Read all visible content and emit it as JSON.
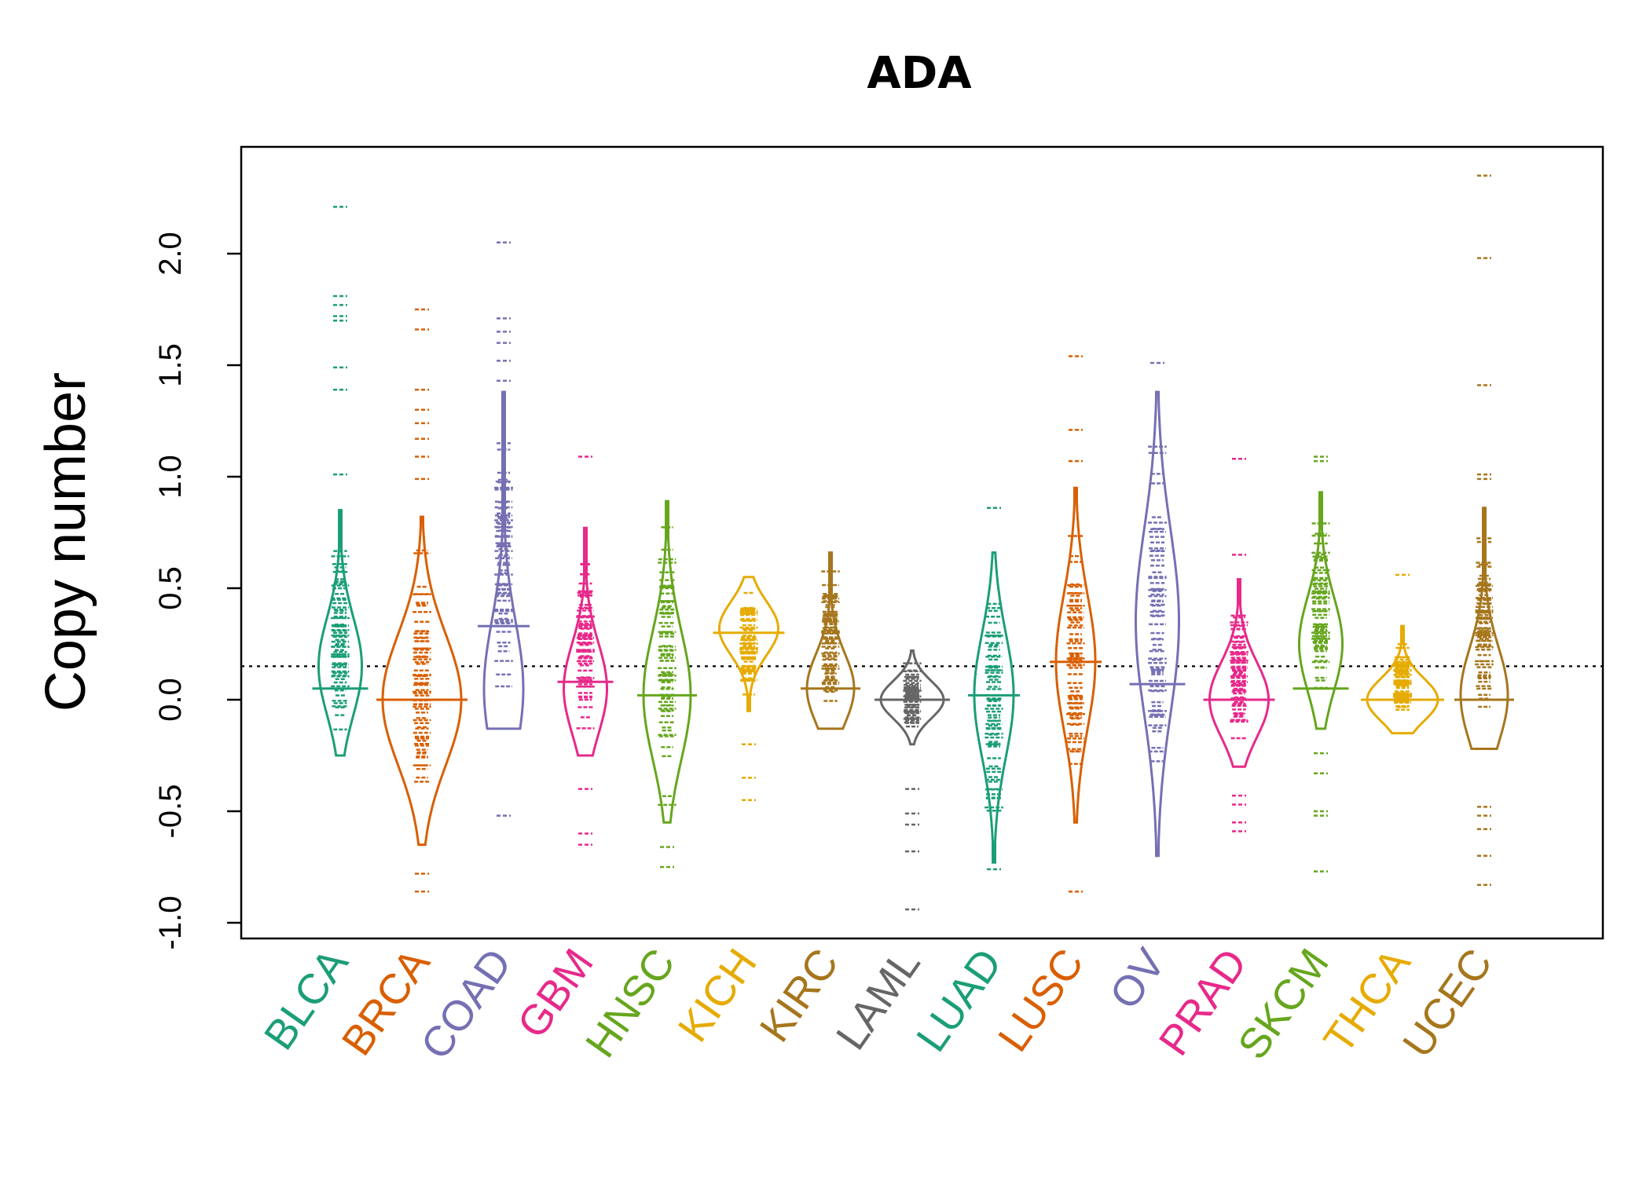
{
  "chart_data": {
    "type": "beanplot",
    "title": "ADA",
    "xlabel": "",
    "ylabel": "Copy number",
    "ylim": [
      -1.0,
      2.3
    ],
    "y_ticks": [
      "-1.0",
      "-0.5",
      "0.0",
      "0.5",
      "1.0",
      "1.5",
      "2.0"
    ],
    "y_tick_values": [
      -1.0,
      -0.5,
      0.0,
      0.5,
      1.0,
      1.5,
      2.0
    ],
    "reference_line": 0.15,
    "grid": false,
    "series": [
      {
        "name": "BLCA",
        "color": "#1B9E77",
        "median": 0.05,
        "center": 0.15,
        "width": 0.55,
        "range": [
          -0.25,
          0.85
        ],
        "extra": [
          2.21,
          1.81,
          1.77,
          1.72,
          1.7,
          1.49,
          1.39,
          1.01
        ]
      },
      {
        "name": "BRCA",
        "color": "#D95F02",
        "median": 0.0,
        "center": 0.0,
        "width": 1.0,
        "range": [
          -0.65,
          0.82
        ],
        "extra": [
          1.75,
          1.66,
          1.39,
          1.3,
          1.24,
          1.17,
          1.09,
          0.99,
          -0.78,
          -0.86
        ]
      },
      {
        "name": "COAD",
        "color": "#7570B3",
        "median": 0.33,
        "center": 0.05,
        "width": 0.5,
        "range": [
          -0.13,
          1.38
        ],
        "extra": [
          2.05,
          1.71,
          1.65,
          1.6,
          1.52,
          1.43,
          -0.52
        ]
      },
      {
        "name": "GBM",
        "color": "#E7298A",
        "median": 0.08,
        "center": 0.05,
        "width": 0.55,
        "range": [
          -0.25,
          0.77
        ],
        "extra": [
          1.09,
          -0.4,
          -0.6,
          -0.65
        ]
      },
      {
        "name": "HNSC",
        "color": "#66A61E",
        "median": 0.02,
        "center": 0.02,
        "width": 0.6,
        "range": [
          -0.55,
          0.89
        ],
        "extra": [
          -0.66,
          -0.75
        ]
      },
      {
        "name": "KICH",
        "color": "#E6AB02",
        "median": 0.3,
        "center": 0.32,
        "width": 0.75,
        "range": [
          -0.05,
          0.55
        ],
        "extra": [
          -0.2,
          -0.35,
          -0.45
        ]
      },
      {
        "name": "KIRC",
        "color": "#A6761D",
        "median": 0.05,
        "center": 0.05,
        "width": 0.6,
        "range": [
          -0.13,
          0.66
        ],
        "extra": []
      },
      {
        "name": "LAML",
        "color": "#666666",
        "median": 0.0,
        "center": 0.0,
        "width": 0.8,
        "range": [
          -0.2,
          0.22
        ],
        "extra": [
          -0.4,
          -0.51,
          -0.56,
          -0.68,
          -0.94
        ]
      },
      {
        "name": "LUAD",
        "color": "#1B9E77",
        "median": 0.02,
        "center": 0.02,
        "width": 0.5,
        "range": [
          -0.73,
          0.66
        ],
        "extra": [
          0.86,
          -0.76
        ]
      },
      {
        "name": "LUSC",
        "color": "#D95F02",
        "median": 0.17,
        "center": 0.17,
        "width": 0.5,
        "range": [
          -0.55,
          0.95
        ],
        "extra": [
          1.54,
          1.21,
          1.07,
          -0.86
        ]
      },
      {
        "name": "OV",
        "color": "#7570B3",
        "median": 0.07,
        "center": 0.35,
        "width": 0.55,
        "range": [
          -0.7,
          1.38
        ],
        "extra": [
          1.51
        ]
      },
      {
        "name": "PRAD",
        "color": "#E7298A",
        "median": 0.0,
        "center": 0.0,
        "width": 0.75,
        "range": [
          -0.3,
          0.54
        ],
        "extra": [
          1.08,
          0.65,
          -0.43,
          -0.47,
          -0.55,
          -0.59
        ]
      },
      {
        "name": "SKCM",
        "color": "#66A61E",
        "median": 0.05,
        "center": 0.25,
        "width": 0.55,
        "range": [
          -0.13,
          0.93
        ],
        "extra": [
          1.09,
          1.07,
          -0.24,
          -0.33,
          -0.5,
          -0.52,
          -0.77
        ]
      },
      {
        "name": "THCA",
        "color": "#E6AB02",
        "median": 0.0,
        "center": 0.0,
        "width": 0.9,
        "range": [
          -0.15,
          0.33
        ],
        "extra": [
          0.56
        ]
      },
      {
        "name": "UCEC",
        "color": "#A6761D",
        "median": 0.0,
        "center": 0.02,
        "width": 0.6,
        "range": [
          -0.22,
          0.86
        ],
        "extra": [
          2.35,
          1.98,
          1.41,
          1.01,
          0.99,
          -0.48,
          -0.52,
          -0.58,
          -0.7,
          -0.83
        ]
      }
    ]
  }
}
